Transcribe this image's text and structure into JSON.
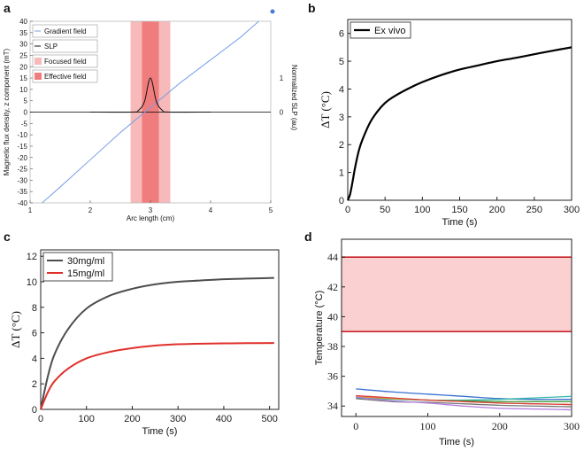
{
  "panels": {
    "a": {
      "letter": "a"
    },
    "b": {
      "letter": "b"
    },
    "c": {
      "letter": "c"
    },
    "d": {
      "letter": "d"
    }
  },
  "chart_data": [
    {
      "id": "a",
      "type": "line",
      "xlabel": "Arc length (cm)",
      "ylabel": "Magnetic flux density, z component (mT)",
      "y2label": "Normalized SLP (au)",
      "xlim": [
        1,
        5
      ],
      "ylim": [
        -40,
        40
      ],
      "y2_ticks": [
        "1",
        "0"
      ],
      "x_ticks": [
        1,
        2,
        3,
        4,
        5
      ],
      "y_ticks": [
        -40,
        -35,
        -30,
        -25,
        -20,
        -15,
        -10,
        -5,
        0,
        5,
        10,
        15,
        20,
        25,
        30,
        35,
        40
      ],
      "colors": {
        "gradient": "#7a9fe6",
        "slp": "#111111",
        "focused": "#f7b9b9",
        "effective": "#f07d7d"
      },
      "focused_band": [
        2.67,
        3.33
      ],
      "effective_band": [
        2.86,
        3.14
      ],
      "legend": [
        "Gradient field",
        "SLP",
        "Focused field",
        "Effective field"
      ],
      "series": [
        {
          "name": "Gradient field",
          "x": [
            1.2,
            1.5,
            2.0,
            2.5,
            3.0,
            3.5,
            4.0,
            4.5,
            4.8
          ],
          "y": [
            -40,
            -33,
            -21,
            -9,
            2,
            13,
            23,
            33,
            40
          ]
        },
        {
          "name": "SLP",
          "x": [
            2.0,
            2.7,
            2.8,
            2.9,
            3.0,
            3.1,
            3.2,
            3.3,
            4.0
          ],
          "y": [
            0,
            0,
            0.05,
            0.3,
            1.0,
            0.3,
            0.05,
            0,
            0
          ]
        }
      ]
    },
    {
      "id": "b",
      "type": "line",
      "xlabel": "Time (s)",
      "ylabel": "ΔT (°C)",
      "xlim": [
        0,
        300
      ],
      "ylim": [
        0,
        6.5
      ],
      "x_ticks": [
        0,
        50,
        100,
        150,
        200,
        250,
        300
      ],
      "y_ticks": [
        0,
        1,
        2,
        3,
        4,
        5,
        6
      ],
      "legend": [
        "Ex vivo"
      ],
      "series": [
        {
          "name": "Ex vivo",
          "x": [
            0,
            3,
            6,
            10,
            15,
            20,
            30,
            40,
            50,
            60,
            80,
            100,
            125,
            150,
            175,
            200,
            225,
            250,
            275,
            300
          ],
          "y": [
            0,
            0.2,
            0.6,
            1.2,
            1.8,
            2.2,
            2.8,
            3.2,
            3.5,
            3.7,
            4.0,
            4.25,
            4.5,
            4.7,
            4.85,
            5.0,
            5.12,
            5.25,
            5.38,
            5.5
          ]
        }
      ]
    },
    {
      "id": "c",
      "type": "line",
      "xlabel": "Time (s)",
      "ylabel": "ΔT (°C)",
      "xlim": [
        0,
        520
      ],
      "ylim": [
        0,
        12.5
      ],
      "x_ticks": [
        0,
        100,
        200,
        300,
        400,
        500
      ],
      "y_ticks": [
        0,
        2,
        4,
        6,
        8,
        10,
        12
      ],
      "legend": [
        "30mg/ml",
        "15mg/ml"
      ],
      "colors": {
        "30mg/ml": "#4d4d4d",
        "15mg/ml": "#e0302b"
      },
      "series": [
        {
          "name": "30mg/ml",
          "x": [
            0,
            15,
            30,
            60,
            100,
            150,
            200,
            250,
            300,
            350,
            400,
            450,
            510
          ],
          "y": [
            0,
            2.5,
            4.3,
            6.3,
            7.9,
            8.9,
            9.45,
            9.8,
            10.0,
            10.1,
            10.2,
            10.25,
            10.3
          ]
        },
        {
          "name": "15mg/ml",
          "x": [
            0,
            15,
            30,
            60,
            100,
            150,
            200,
            250,
            300,
            350,
            400,
            450,
            510
          ],
          "y": [
            0,
            1.3,
            2.2,
            3.2,
            4.0,
            4.5,
            4.8,
            5.0,
            5.1,
            5.15,
            5.17,
            5.19,
            5.2
          ]
        }
      ]
    },
    {
      "id": "d",
      "type": "line",
      "xlabel": "Time (s)",
      "ylabel": "Temperature (°C)",
      "xlim": [
        -20,
        300
      ],
      "ylim": [
        33.3,
        45.2
      ],
      "x_ticks": [
        0,
        100,
        200,
        300
      ],
      "y_ticks": [
        34,
        36,
        38,
        40,
        42,
        44
      ],
      "band": {
        "low": 39,
        "high": 44,
        "fill": "#fbd0d0",
        "line": "#c9242a"
      },
      "series": [
        {
          "name": "blue",
          "color": "#3a6fd0",
          "x": [
            0,
            50,
            100,
            150,
            200,
            250,
            300
          ],
          "y": [
            35.15,
            34.95,
            34.8,
            34.65,
            34.5,
            34.45,
            34.45
          ]
        },
        {
          "name": "teal",
          "color": "#39b8a8",
          "x": [
            0,
            50,
            100,
            150,
            200,
            250,
            300
          ],
          "y": [
            34.55,
            34.45,
            34.4,
            34.4,
            34.45,
            34.55,
            34.65
          ]
        },
        {
          "name": "green",
          "color": "#3b9a3b",
          "x": [
            0,
            50,
            100,
            150,
            200,
            250,
            300
          ],
          "y": [
            34.6,
            34.5,
            34.4,
            34.35,
            34.3,
            34.3,
            34.3
          ]
        },
        {
          "name": "orange",
          "color": "#e8a03a",
          "x": [
            0,
            50,
            100,
            150,
            200,
            250,
            300
          ],
          "y": [
            34.65,
            34.5,
            34.4,
            34.3,
            34.2,
            34.15,
            34.1
          ]
        },
        {
          "name": "red",
          "color": "#d94040",
          "x": [
            0,
            50,
            100,
            150,
            200,
            250,
            300
          ],
          "y": [
            34.7,
            34.55,
            34.4,
            34.3,
            34.2,
            34.15,
            34.1
          ]
        },
        {
          "name": "gray",
          "color": "#777777",
          "x": [
            0,
            50,
            100,
            150,
            200,
            250,
            300
          ],
          "y": [
            34.5,
            34.3,
            34.25,
            34.15,
            34.05,
            34.0,
            33.95
          ]
        },
        {
          "name": "purple",
          "color": "#b07be0",
          "x": [
            0,
            50,
            100,
            150,
            200,
            250,
            300
          ],
          "y": [
            34.6,
            34.35,
            34.2,
            34.0,
            33.85,
            33.8,
            33.75
          ]
        }
      ]
    }
  ]
}
